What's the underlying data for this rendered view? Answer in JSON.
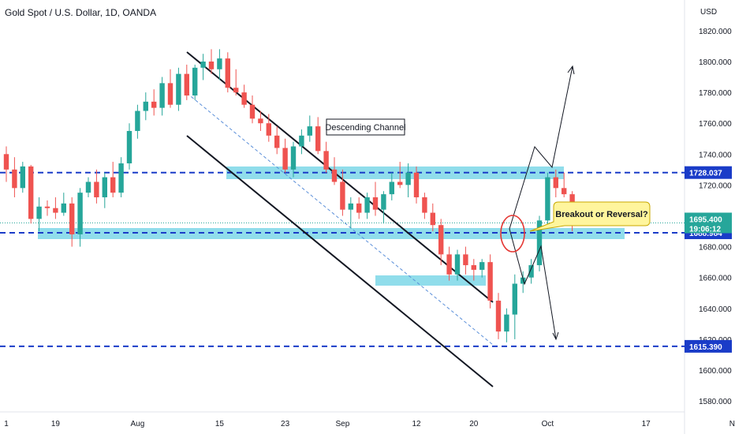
{
  "header": {
    "title": "Gold Spot / U.S. Dollar, 1D, OANDA"
  },
  "chart_data": {
    "type": "candlestick",
    "currency": "USD",
    "y_ticks": [
      1580,
      1600,
      1620,
      1640,
      1660,
      1680,
      1700,
      1720,
      1740,
      1760,
      1780,
      1800,
      1820
    ],
    "y_tick_labels": [
      "1580.000",
      "1600.000",
      "1620.000",
      "1640.000",
      "1660.000",
      "1680.000",
      "1700.000",
      "1720.000",
      "1740.000",
      "1760.000",
      "1780.000",
      "1800.000",
      "1820.000"
    ],
    "y_range": [
      1566,
      1832
    ],
    "x_labels": [
      {
        "label": "1",
        "bar": 0
      },
      {
        "label": "19",
        "bar": 6
      },
      {
        "label": "Aug",
        "bar": 16
      },
      {
        "label": "15",
        "bar": 26
      },
      {
        "label": "23",
        "bar": 34
      },
      {
        "label": "Sep",
        "bar": 41
      },
      {
        "label": "12",
        "bar": 50
      },
      {
        "label": "20",
        "bar": 57
      },
      {
        "label": "Oct",
        "bar": 66
      },
      {
        "label": "17",
        "bar": 78
      },
      {
        "label": "Nov",
        "bar": 89
      }
    ],
    "candles": [
      [
        1740,
        1745,
        1722,
        1730
      ],
      [
        1730,
        1738,
        1712,
        1718
      ],
      [
        1718,
        1735,
        1715,
        1732
      ],
      [
        1732,
        1733,
        1695,
        1698
      ],
      [
        1698,
        1712,
        1690,
        1706
      ],
      [
        1706,
        1710,
        1700,
        1705
      ],
      [
        1705,
        1712,
        1698,
        1702
      ],
      [
        1702,
        1715,
        1700,
        1708
      ],
      [
        1708,
        1712,
        1680,
        1688
      ],
      [
        1688,
        1718,
        1680,
        1715
      ],
      [
        1715,
        1725,
        1712,
        1722
      ],
      [
        1722,
        1730,
        1708,
        1712
      ],
      [
        1712,
        1728,
        1705,
        1725
      ],
      [
        1725,
        1735,
        1712,
        1715
      ],
      [
        1715,
        1738,
        1712,
        1734
      ],
      [
        1734,
        1760,
        1730,
        1755
      ],
      [
        1755,
        1772,
        1750,
        1768
      ],
      [
        1768,
        1780,
        1762,
        1774
      ],
      [
        1774,
        1782,
        1765,
        1770
      ],
      [
        1770,
        1790,
        1765,
        1786
      ],
      [
        1786,
        1795,
        1770,
        1772
      ],
      [
        1772,
        1796,
        1768,
        1792
      ],
      [
        1792,
        1798,
        1775,
        1778
      ],
      [
        1778,
        1798,
        1775,
        1796
      ],
      [
        1796,
        1805,
        1788,
        1800
      ],
      [
        1800,
        1808,
        1792,
        1795
      ],
      [
        1795,
        1808,
        1788,
        1802
      ],
      [
        1802,
        1806,
        1780,
        1783
      ],
      [
        1783,
        1795,
        1778,
        1780
      ],
      [
        1780,
        1785,
        1770,
        1772
      ],
      [
        1772,
        1778,
        1760,
        1763
      ],
      [
        1763,
        1768,
        1755,
        1760
      ],
      [
        1760,
        1766,
        1748,
        1752
      ],
      [
        1752,
        1758,
        1740,
        1744
      ],
      [
        1744,
        1750,
        1728,
        1730
      ],
      [
        1730,
        1748,
        1725,
        1745
      ],
      [
        1745,
        1756,
        1740,
        1752
      ],
      [
        1752,
        1765,
        1748,
        1758
      ],
      [
        1758,
        1764,
        1740,
        1742
      ],
      [
        1742,
        1748,
        1728,
        1730
      ],
      [
        1730,
        1738,
        1720,
        1722
      ],
      [
        1722,
        1730,
        1700,
        1704
      ],
      [
        1704,
        1712,
        1692,
        1708
      ],
      [
        1708,
        1712,
        1698,
        1702
      ],
      [
        1702,
        1715,
        1698,
        1712
      ],
      [
        1712,
        1722,
        1700,
        1704
      ],
      [
        1704,
        1716,
        1695,
        1714
      ],
      [
        1714,
        1728,
        1710,
        1722
      ],
      [
        1722,
        1735,
        1718,
        1720
      ],
      [
        1720,
        1734,
        1712,
        1728
      ],
      [
        1728,
        1732,
        1708,
        1712
      ],
      [
        1712,
        1715,
        1698,
        1702
      ],
      [
        1702,
        1708,
        1690,
        1694
      ],
      [
        1694,
        1698,
        1668,
        1675
      ],
      [
        1675,
        1680,
        1658,
        1662
      ],
      [
        1662,
        1678,
        1658,
        1675
      ],
      [
        1675,
        1680,
        1662,
        1668
      ],
      [
        1668,
        1672,
        1658,
        1665
      ],
      [
        1665,
        1672,
        1660,
        1670
      ],
      [
        1670,
        1675,
        1640,
        1645
      ],
      [
        1645,
        1650,
        1620,
        1625
      ],
      [
        1625,
        1640,
        1618,
        1636
      ],
      [
        1636,
        1662,
        1620,
        1656
      ],
      [
        1656,
        1664,
        1650,
        1660
      ],
      [
        1660,
        1672,
        1656,
        1668
      ],
      [
        1668,
        1700,
        1664,
        1697
      ],
      [
        1697,
        1728,
        1694,
        1725
      ],
      [
        1725,
        1730,
        1712,
        1718
      ],
      [
        1718,
        1728,
        1712,
        1714
      ],
      [
        1714,
        1716,
        1690,
        1695
      ]
    ],
    "annotations": {
      "descending_channel_label": "Descending Channel",
      "callout_label": "Breakout or Reversal?"
    },
    "levels": [
      {
        "label": "1728.037",
        "value": 1728.037,
        "color": "#1a3cc8",
        "style": "dashed"
      },
      {
        "label": "1688.984",
        "value": 1688.984,
        "color": "#1a3cc8",
        "style": "dashed"
      },
      {
        "label": "1615.390",
        "value": 1615.39,
        "color": "#1a3cc8",
        "style": "dashed"
      }
    ],
    "current_price": {
      "label": "1695.400",
      "value": 1695.4,
      "countdown": "19:06:12",
      "color": "#26a69a"
    },
    "colors": {
      "up": "#26a69a",
      "down": "#ef5350",
      "zone": "#7dd7e8",
      "level": "#1a3cc8",
      "callout": "#fff59d"
    }
  }
}
